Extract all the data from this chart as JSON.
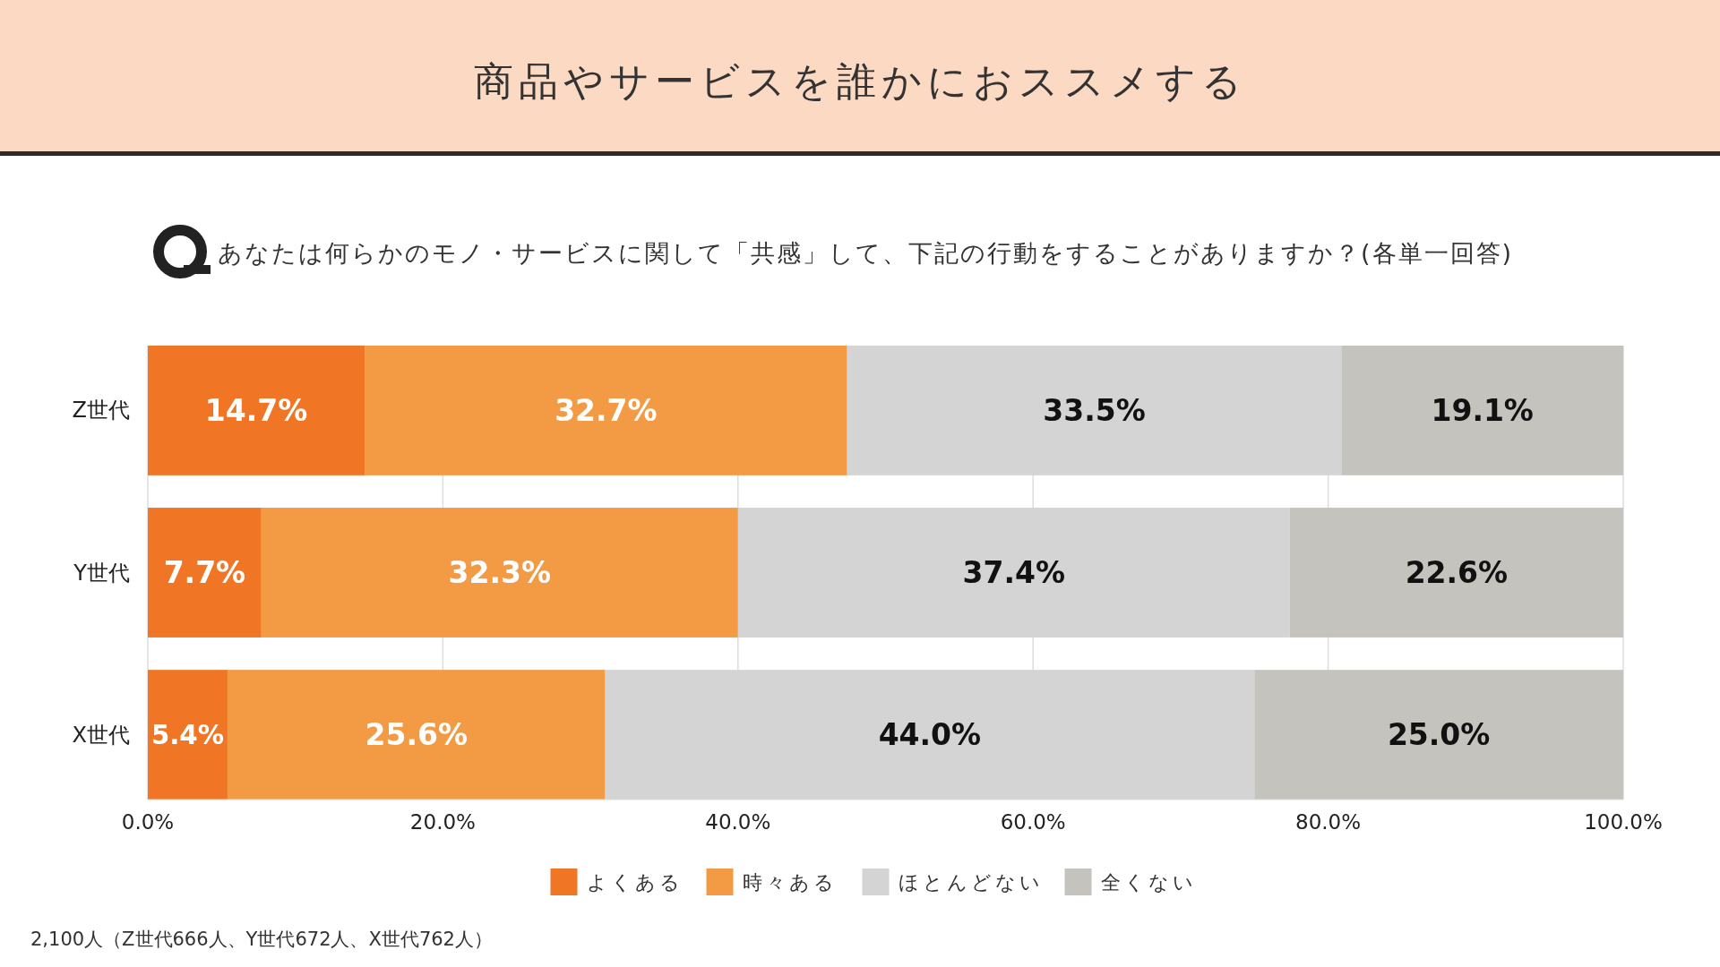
{
  "chart_data": {
    "type": "bar",
    "orientation": "horizontal",
    "stacked": true,
    "title": "商品やサービスを誰かにおススメする",
    "subtitle": "あなたは何らかのモノ・サービスに関して「共感」して、下記の行動をすることがありますか？(各単一回答)",
    "categories": [
      "Z世代",
      "Y世代",
      "X世代"
    ],
    "series": [
      {
        "name": "よくある",
        "color": "#f07524",
        "values": [
          14.7,
          7.7,
          5.4
        ],
        "value_labels": [
          "14.7%",
          "7.7%",
          "5.4%"
        ]
      },
      {
        "name": "時々ある",
        "color": "#f39a45",
        "values": [
          32.7,
          32.3,
          25.6
        ],
        "value_labels": [
          "32.7%",
          "32.3%",
          "25.6%"
        ]
      },
      {
        "name": "ほとんどない",
        "color": "#d4d4d4",
        "values": [
          33.5,
          37.4,
          44.0
        ],
        "value_labels": [
          "33.5%",
          "37.4%",
          "44.0%"
        ]
      },
      {
        "name": "全くない",
        "color": "#c5c3bd",
        "values": [
          19.1,
          22.6,
          25.0
        ],
        "value_labels": [
          "19.1%",
          "22.6%",
          "25.0%"
        ]
      }
    ],
    "xlim": [
      0,
      100
    ],
    "xticks": [
      {
        "value": 0,
        "label": "0.0%"
      },
      {
        "value": 20,
        "label": "20.0%"
      },
      {
        "value": 40,
        "label": "40.0%"
      },
      {
        "value": 60,
        "label": "60.0%"
      },
      {
        "value": 80,
        "label": "80.0%"
      },
      {
        "value": 100,
        "label": "100.0%"
      }
    ],
    "grid": "x",
    "legend": "bottom",
    "annotations": [
      "2,100人（Z世代666人、Y世代672人、X世代762人）"
    ]
  }
}
